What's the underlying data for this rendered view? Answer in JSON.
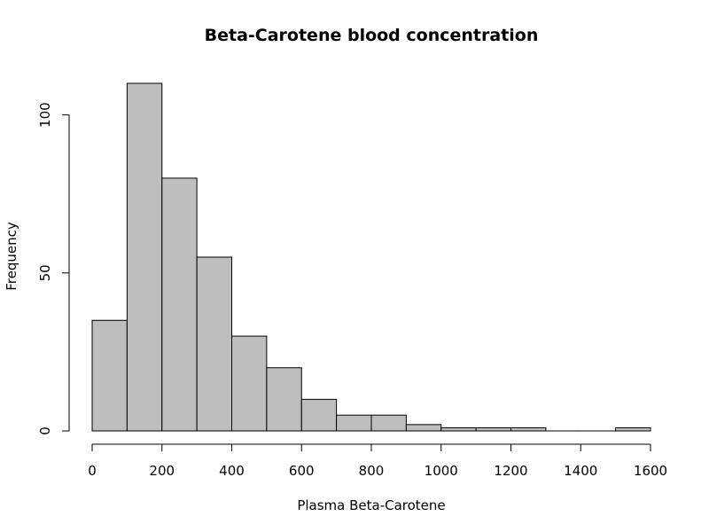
{
  "chart_data": {
    "type": "bar",
    "subtype": "histogram",
    "title": "Beta-Carotene blood concentration",
    "xlabel": "Plasma Beta-Carotene",
    "ylabel": "Frequency",
    "bin_width": 100,
    "bins": [
      {
        "start": 0,
        "end": 100,
        "count": 35
      },
      {
        "start": 100,
        "end": 200,
        "count": 110
      },
      {
        "start": 200,
        "end": 300,
        "count": 80
      },
      {
        "start": 300,
        "end": 400,
        "count": 55
      },
      {
        "start": 400,
        "end": 500,
        "count": 30
      },
      {
        "start": 500,
        "end": 600,
        "count": 20
      },
      {
        "start": 600,
        "end": 700,
        "count": 10
      },
      {
        "start": 700,
        "end": 800,
        "count": 5
      },
      {
        "start": 800,
        "end": 900,
        "count": 5
      },
      {
        "start": 900,
        "end": 1000,
        "count": 2
      },
      {
        "start": 1000,
        "end": 1100,
        "count": 1
      },
      {
        "start": 1100,
        "end": 1200,
        "count": 1
      },
      {
        "start": 1200,
        "end": 1300,
        "count": 1
      },
      {
        "start": 1300,
        "end": 1400,
        "count": 0
      },
      {
        "start": 1400,
        "end": 1500,
        "count": 0
      },
      {
        "start": 1500,
        "end": 1600,
        "count": 1
      }
    ],
    "xlim": [
      0,
      1600
    ],
    "ylim": [
      0,
      110
    ],
    "x_ticks": [
      0,
      200,
      400,
      600,
      800,
      1000,
      1200,
      1400,
      1600
    ],
    "y_ticks": [
      0,
      50,
      100
    ],
    "grid": false,
    "bar_color": "#bebebe",
    "edge_color": "#000000"
  }
}
